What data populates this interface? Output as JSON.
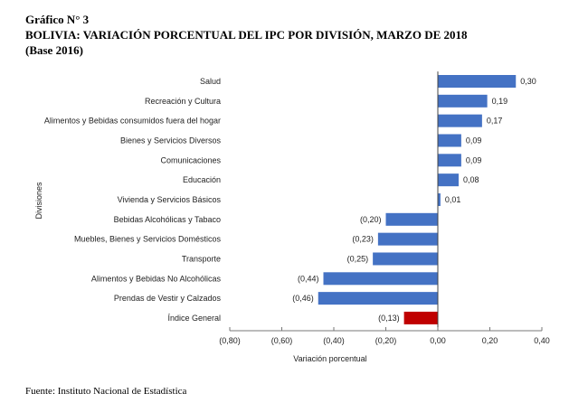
{
  "header": {
    "line1": "Gráfico N° 3",
    "line2": "BOLIVIA: VARIACIÓN PORCENTUAL DEL IPC POR DIVISIÓN, MARZO DE 2018",
    "line3": "(Base 2016)"
  },
  "source": "Fuente: Instituto Nacional de Estadística",
  "chart_data": {
    "type": "bar",
    "orientation": "horizontal",
    "categories": [
      "Salud",
      "Recreación y Cultura",
      "Alimentos y Bebidas consumidos fuera del hogar",
      "Bienes y Servicios Diversos",
      "Comunicaciones",
      "Educación",
      "Vivienda y Servicios Básicos",
      "Bebidas Alcohólicas y Tabaco",
      "Muebles, Bienes y Servicios Domésticos",
      "Transporte",
      "Alimentos y Bebidas No Alcohólicas",
      "Prendas de Vestir y Calzados",
      "Índice General"
    ],
    "values": [
      0.3,
      0.19,
      0.17,
      0.09,
      0.09,
      0.08,
      0.01,
      -0.2,
      -0.23,
      -0.25,
      -0.44,
      -0.46,
      -0.13
    ],
    "labels": [
      "0,30",
      "0,19",
      "0,17",
      "0,09",
      "0,09",
      "0,08",
      "0,01",
      "(0,20)",
      "(0,23)",
      "(0,25)",
      "(0,44)",
      "(0,46)",
      "(0,13)"
    ],
    "colors": {
      "default": "#4472C4",
      "highlight": "#C00000"
    },
    "highlight_index": 12,
    "xlabel": "Variación porcentual",
    "ylabel": "Divisiones",
    "xlim": [
      -0.8,
      0.4
    ],
    "xticks": [
      -0.8,
      -0.6,
      -0.4,
      -0.2,
      0,
      0.2,
      0.4
    ],
    "xtick_labels": [
      "(0,80)",
      "(0,60)",
      "(0,40)",
      "(0,20)",
      "0,00",
      "0,20",
      "0,40"
    ],
    "grid": false
  }
}
